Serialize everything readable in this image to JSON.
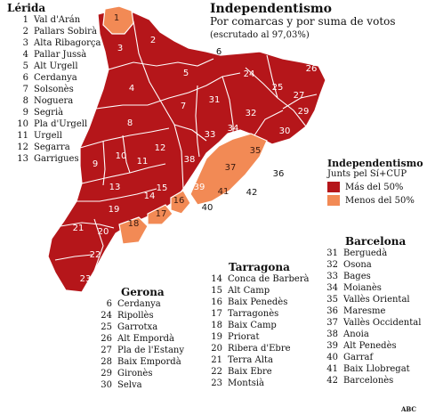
{
  "title": "Independentismo",
  "subtitle": "Por comarcas y por suma de votos",
  "note": "(escrutado al 97,03%)",
  "legend": {
    "title": "Independentismo",
    "subtitle": "Junts pel Sí+CUP",
    "items": [
      {
        "label": "Más del 50%",
        "color": "#b5161a"
      },
      {
        "label": "Menos del 50%",
        "color": "#f28a55"
      }
    ]
  },
  "source": "ABC",
  "colors": {
    "majority": "#b5161a",
    "minority": "#f28a55",
    "border": "#ffffff"
  },
  "regions": [
    {
      "name": "Lérida",
      "comarcas": [
        {
          "n": "1",
          "name": "Val d'Arán"
        },
        {
          "n": "2",
          "name": "Pallars Sobirà"
        },
        {
          "n": "3",
          "name": "Alta Ribagorça"
        },
        {
          "n": "4",
          "name": "Pallar Jussà"
        },
        {
          "n": "5",
          "name": "Alt Urgell"
        },
        {
          "n": "6",
          "name": "Cerdanya"
        },
        {
          "n": "7",
          "name": "Solsonès"
        },
        {
          "n": "8",
          "name": "Noguera"
        },
        {
          "n": "9",
          "name": "Segrià"
        },
        {
          "n": "10",
          "name": "Pla d'Urgell"
        },
        {
          "n": "11",
          "name": "Urgell"
        },
        {
          "n": "12",
          "name": "Segarra"
        },
        {
          "n": "13",
          "name": "Garrigues"
        }
      ]
    },
    {
      "name": "Gerona",
      "comarcas": [
        {
          "n": "6",
          "name": "Cerdanya"
        },
        {
          "n": "24",
          "name": "Ripollès"
        },
        {
          "n": "25",
          "name": "Garrotxa"
        },
        {
          "n": "26",
          "name": "Alt Empordà"
        },
        {
          "n": "27",
          "name": "Pla de l'Estany"
        },
        {
          "n": "28",
          "name": "Baix Empordà"
        },
        {
          "n": "29",
          "name": "Gironès"
        },
        {
          "n": "30",
          "name": "Selva"
        }
      ]
    },
    {
      "name": "Tarragona",
      "comarcas": [
        {
          "n": "14",
          "name": "Conca de Barberà"
        },
        {
          "n": "15",
          "name": "Alt Camp"
        },
        {
          "n": "16",
          "name": "Baix Penedès"
        },
        {
          "n": "17",
          "name": "Tarragonès"
        },
        {
          "n": "18",
          "name": "Baix Camp"
        },
        {
          "n": "19",
          "name": "Priorat"
        },
        {
          "n": "20",
          "name": "Ribera d'Ebre"
        },
        {
          "n": "21",
          "name": "Terra Alta"
        },
        {
          "n": "22",
          "name": "Baix Ebre"
        },
        {
          "n": "23",
          "name": "Montsià"
        }
      ]
    },
    {
      "name": "Barcelona",
      "comarcas": [
        {
          "n": "31",
          "name": "Berguedà"
        },
        {
          "n": "32",
          "name": "Osona"
        },
        {
          "n": "33",
          "name": "Bages"
        },
        {
          "n": "34",
          "name": "Moianès"
        },
        {
          "n": "35",
          "name": "Vallès Oriental"
        },
        {
          "n": "36",
          "name": "Maresme"
        },
        {
          "n": "37",
          "name": "Vallès Occidental"
        },
        {
          "n": "38",
          "name": "Anoia"
        },
        {
          "n": "39",
          "name": "Alt Penedès"
        },
        {
          "n": "40",
          "name": "Garraf"
        },
        {
          "n": "41",
          "name": "Baix Llobregat"
        },
        {
          "n": "42",
          "name": "Barcelonès"
        }
      ]
    }
  ],
  "map_labels": [
    {
      "n": "1",
      "status": "minority"
    },
    {
      "n": "2",
      "status": "majority"
    },
    {
      "n": "3",
      "status": "majority"
    },
    {
      "n": "4",
      "status": "majority"
    },
    {
      "n": "5",
      "status": "majority"
    },
    {
      "n": "6",
      "status": "majority"
    },
    {
      "n": "7",
      "status": "majority"
    },
    {
      "n": "8",
      "status": "majority"
    },
    {
      "n": "9",
      "status": "majority"
    },
    {
      "n": "10",
      "status": "majority"
    },
    {
      "n": "11",
      "status": "majority"
    },
    {
      "n": "12",
      "status": "majority"
    },
    {
      "n": "13",
      "status": "majority"
    },
    {
      "n": "14",
      "status": "majority"
    },
    {
      "n": "15",
      "status": "majority"
    },
    {
      "n": "16",
      "status": "minority"
    },
    {
      "n": "17",
      "status": "minority"
    },
    {
      "n": "18",
      "status": "minority"
    },
    {
      "n": "19",
      "status": "majority"
    },
    {
      "n": "20",
      "status": "majority"
    },
    {
      "n": "21",
      "status": "majority"
    },
    {
      "n": "22",
      "status": "majority"
    },
    {
      "n": "23",
      "status": "majority"
    },
    {
      "n": "24",
      "status": "majority"
    },
    {
      "n": "25",
      "status": "majority"
    },
    {
      "n": "26",
      "status": "majority"
    },
    {
      "n": "27",
      "status": "majority"
    },
    {
      "n": "28",
      "status": "majority"
    },
    {
      "n": "29",
      "status": "majority"
    },
    {
      "n": "30",
      "status": "majority"
    },
    {
      "n": "31",
      "status": "majority"
    },
    {
      "n": "32",
      "status": "majority"
    },
    {
      "n": "33",
      "status": "majority"
    },
    {
      "n": "34",
      "status": "majority"
    },
    {
      "n": "35",
      "status": "minority"
    },
    {
      "n": "36",
      "status": "minority"
    },
    {
      "n": "37",
      "status": "minority"
    },
    {
      "n": "38",
      "status": "majority"
    },
    {
      "n": "39",
      "status": "majority"
    },
    {
      "n": "40",
      "status": "minority"
    },
    {
      "n": "41",
      "status": "minority"
    },
    {
      "n": "42",
      "status": "minority"
    }
  ]
}
